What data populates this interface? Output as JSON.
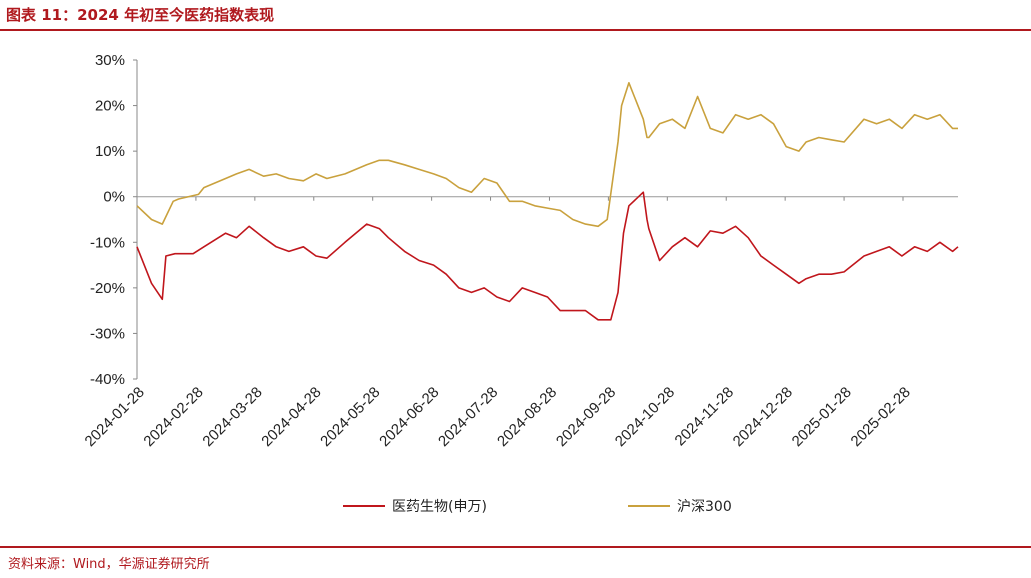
{
  "title": "图表 11：2024 年初至今医药指数表现",
  "source": "资料来源：Wind，华源证券研究所",
  "colors": {
    "accent": "#b0191e",
    "series_pharma": "#c0161c",
    "series_hs300": "#c9a13d"
  },
  "chart_data": {
    "type": "line",
    "title": "",
    "xlabel": "",
    "ylabel": "",
    "ylim": [
      -40,
      30
    ],
    "yticks": [
      "30%",
      "20%",
      "10%",
      "0%",
      "-10%",
      "-20%",
      "-30%",
      "-40%"
    ],
    "ytick_values": [
      30,
      20,
      10,
      0,
      -10,
      -20,
      -30,
      -40
    ],
    "xticks": [
      "2024-01-28",
      "2024-02-28",
      "2024-03-28",
      "2024-04-28",
      "2024-05-28",
      "2024-06-28",
      "2024-07-28",
      "2024-08-28",
      "2024-09-28",
      "2024-10-28",
      "2024-11-28",
      "2024-12-28",
      "2025-01-28",
      "2025-02-28"
    ],
    "x_start": "2024-01-02",
    "x_end": "2025-03-31",
    "legend": "bottom",
    "grid": false,
    "series": [
      {
        "name": "医药生物(申万)",
        "x": [
          "2024-01-02",
          "2024-01-10",
          "2024-01-16",
          "2024-01-18",
          "2024-01-23",
          "2024-02-02",
          "2024-02-08",
          "2024-02-20",
          "2024-02-26",
          "2024-03-04",
          "2024-03-12",
          "2024-03-19",
          "2024-03-26",
          "2024-04-03",
          "2024-04-10",
          "2024-04-16",
          "2024-04-26",
          "2024-05-08",
          "2024-05-15",
          "2024-05-20",
          "2024-05-29",
          "2024-06-06",
          "2024-06-14",
          "2024-06-21",
          "2024-06-28",
          "2024-07-05",
          "2024-07-12",
          "2024-07-19",
          "2024-07-26",
          "2024-08-02",
          "2024-08-09",
          "2024-08-16",
          "2024-08-23",
          "2024-08-30",
          "2024-09-06",
          "2024-09-13",
          "2024-09-20",
          "2024-09-24",
          "2024-09-27",
          "2024-09-30",
          "2024-10-08",
          "2024-10-10",
          "2024-10-11",
          "2024-10-17",
          "2024-10-24",
          "2024-10-31",
          "2024-11-07",
          "2024-11-14",
          "2024-11-21",
          "2024-11-28",
          "2024-12-05",
          "2024-12-12",
          "2024-12-19",
          "2024-12-26",
          "2025-01-02",
          "2025-01-06",
          "2025-01-13",
          "2025-01-20",
          "2025-01-27",
          "2025-02-07",
          "2025-02-14",
          "2025-02-21",
          "2025-02-28",
          "2025-03-07",
          "2025-03-14",
          "2025-03-21",
          "2025-03-28",
          "2025-03-31"
        ],
        "values": [
          -11,
          -19,
          -22.5,
          -13,
          -12.5,
          -12.5,
          -11,
          -8,
          -9,
          -6.5,
          -9,
          -11,
          -12,
          -11,
          -13,
          -13.5,
          -10,
          -6,
          -7,
          -9,
          -12,
          -14,
          -15,
          -17,
          -20,
          -21,
          -20,
          -22,
          -23,
          -20,
          -21,
          -22,
          -25,
          -25,
          -25,
          -27,
          -27,
          -21,
          -8,
          -2,
          1,
          -5,
          -7,
          -14,
          -11,
          -9,
          -11,
          -7.5,
          -8,
          -6.5,
          -9,
          -13,
          -15,
          -17,
          -19,
          -18,
          -17,
          -17,
          -16.5,
          -13,
          -12,
          -11,
          -13,
          -11,
          -12,
          -10,
          -12,
          -11
        ]
      },
      {
        "name": "沪深300",
        "x": [
          "2024-01-02",
          "2024-01-10",
          "2024-01-16",
          "2024-01-22",
          "2024-01-25",
          "2024-02-05",
          "2024-02-08",
          "2024-02-20",
          "2024-02-26",
          "2024-03-04",
          "2024-03-12",
          "2024-03-19",
          "2024-03-26",
          "2024-04-03",
          "2024-04-10",
          "2024-04-16",
          "2024-04-26",
          "2024-05-08",
          "2024-05-15",
          "2024-05-20",
          "2024-05-29",
          "2024-06-06",
          "2024-06-14",
          "2024-06-21",
          "2024-06-28",
          "2024-07-05",
          "2024-07-12",
          "2024-07-19",
          "2024-07-26",
          "2024-08-02",
          "2024-08-09",
          "2024-08-16",
          "2024-08-23",
          "2024-08-30",
          "2024-09-06",
          "2024-09-13",
          "2024-09-18",
          "2024-09-24",
          "2024-09-26",
          "2024-09-30",
          "2024-10-08",
          "2024-10-10",
          "2024-10-11",
          "2024-10-17",
          "2024-10-24",
          "2024-10-31",
          "2024-11-07",
          "2024-11-14",
          "2024-11-21",
          "2024-11-28",
          "2024-12-05",
          "2024-12-12",
          "2024-12-19",
          "2024-12-26",
          "2025-01-02",
          "2025-01-06",
          "2025-01-13",
          "2025-01-20",
          "2025-01-27",
          "2025-02-07",
          "2025-02-14",
          "2025-02-21",
          "2025-02-28",
          "2025-03-07",
          "2025-03-14",
          "2025-03-21",
          "2025-03-28",
          "2025-03-31"
        ],
        "values": [
          -2,
          -5,
          -6,
          -1,
          -0.5,
          0.5,
          2,
          4,
          5,
          6,
          4.5,
          5,
          4,
          3.5,
          5,
          4,
          5,
          7,
          8,
          8,
          7,
          6,
          5,
          4,
          2,
          1,
          4,
          3,
          -1,
          -1,
          -2,
          -2.5,
          -3,
          -5,
          -6,
          -6.5,
          -5,
          12,
          20,
          25,
          17,
          13,
          13,
          16,
          17,
          15,
          22,
          15,
          14,
          18,
          17,
          18,
          16,
          11,
          10,
          12,
          13,
          12.5,
          12,
          17,
          16,
          17,
          15,
          18,
          17,
          18,
          15,
          15
        ]
      }
    ]
  },
  "legend_labels": {
    "pharma": "医药生物(申万)",
    "hs300": "沪深300"
  }
}
